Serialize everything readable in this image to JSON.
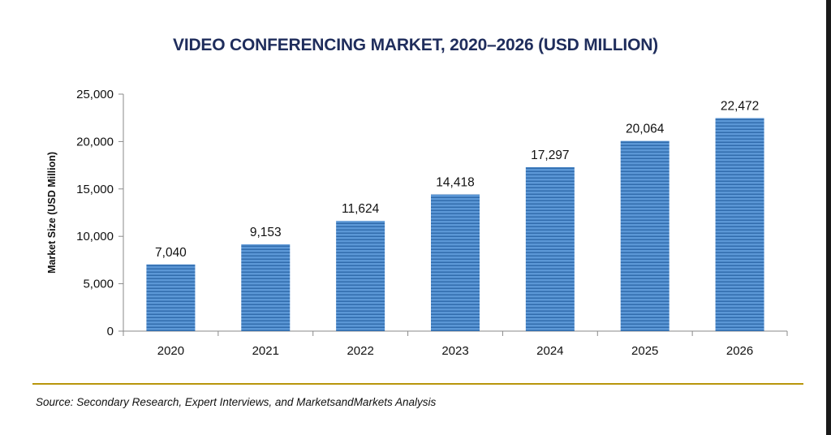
{
  "chart_data": {
    "type": "bar",
    "title": "VIDEO CONFERENCING MARKET, 2020–2026 (USD MILLION)",
    "xlabel": "",
    "ylabel": "Market Size (USD Million)",
    "categories": [
      "2020",
      "2021",
      "2022",
      "2023",
      "2024",
      "2025",
      "2026"
    ],
    "values": [
      7040,
      9153,
      11624,
      14418,
      17297,
      20064,
      22472
    ],
    "value_labels": [
      "7,040",
      "9,153",
      "11,624",
      "14,418",
      "17,297",
      "20,064",
      "22,472"
    ],
    "ylim": [
      0,
      25000
    ],
    "yticks": [
      0,
      5000,
      10000,
      15000,
      20000,
      25000
    ],
    "ytick_labels": [
      "0",
      "5,000",
      "10,000",
      "15,000",
      "20,000",
      "25,000"
    ],
    "grid": false,
    "bar_color": "#4a86c8"
  },
  "source": "Source: Secondary Research, Expert Interviews, and MarketsandMarkets Analysis",
  "colors": {
    "title": "#1f2d5c",
    "divider": "#b8960c"
  }
}
